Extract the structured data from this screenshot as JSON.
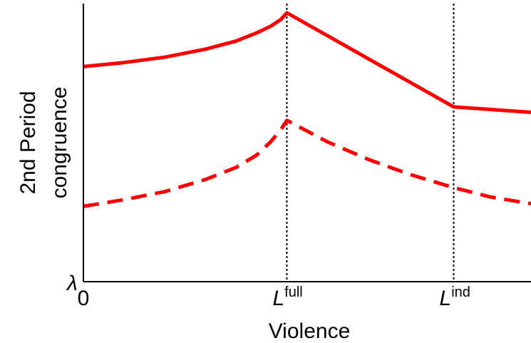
{
  "chart_data": {
    "type": "line",
    "xlabel": "Violence",
    "ylabel_line1": "2nd Period",
    "ylabel_line2": "congruence",
    "y_origin_label": "λ",
    "x_ticks": [
      {
        "x": 0,
        "main": "0",
        "sup": ""
      },
      {
        "x": 1,
        "main": "L",
        "sup": "full"
      },
      {
        "x": 1.82,
        "main": "L",
        "sup": "ind"
      }
    ],
    "xlim": [
      0,
      2.2
    ],
    "ylim": [
      0,
      1
    ],
    "vlines": [
      1,
      1.82
    ],
    "series": [
      {
        "style": "solid",
        "color": "#ff0000",
        "x": [
          0,
          0.2,
          0.4,
          0.6,
          0.75,
          0.85,
          0.92,
          0.97,
          1.0,
          1.82,
          2.2
        ],
        "y": [
          0.8,
          0.815,
          0.835,
          0.865,
          0.895,
          0.925,
          0.95,
          0.975,
          1.0,
          0.65,
          0.63
        ]
      },
      {
        "style": "dashed",
        "color": "#ff0000",
        "x": [
          0,
          0.2,
          0.4,
          0.6,
          0.75,
          0.85,
          0.92,
          0.97,
          1.0,
          1.2,
          1.4,
          1.6,
          1.82,
          2.0,
          2.2
        ],
        "y": [
          0.28,
          0.305,
          0.335,
          0.38,
          0.425,
          0.47,
          0.52,
          0.565,
          0.6,
          0.52,
          0.455,
          0.4,
          0.35,
          0.315,
          0.29
        ]
      }
    ]
  }
}
